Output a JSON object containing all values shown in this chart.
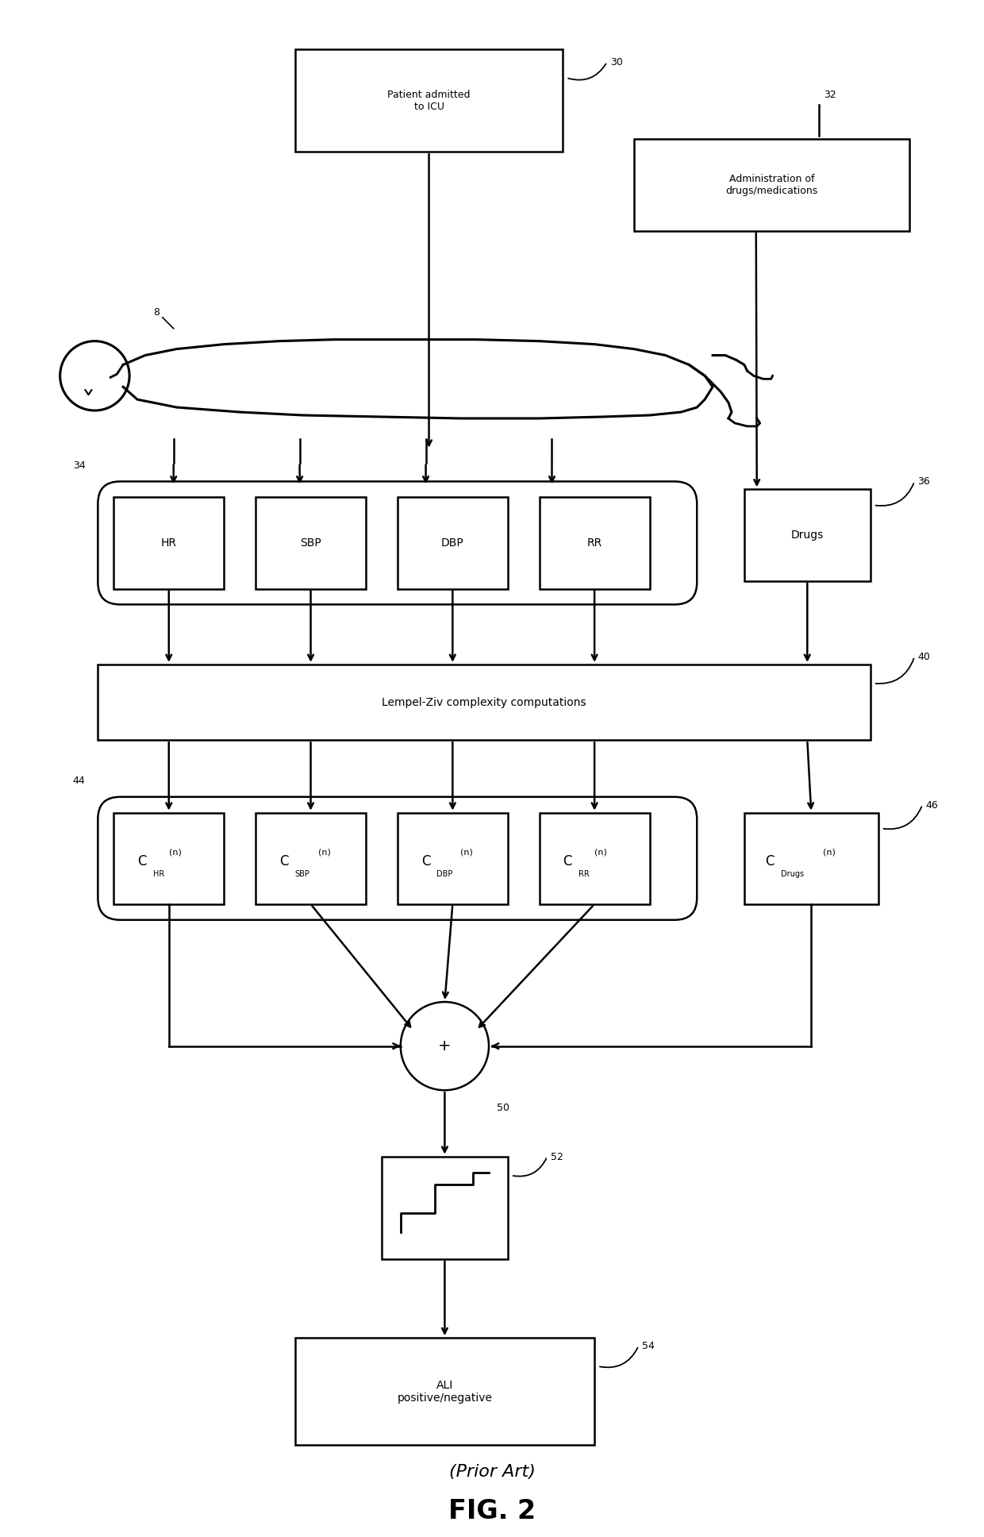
{
  "bg_color": "#ffffff",
  "line_color": "#000000",
  "text_color": "#000000",
  "fig_width": 12.4,
  "fig_height": 19.36,
  "title_prior_art": "(Prior Art)",
  "title_fig": "FIG. 2",
  "labels": {
    "patient_box": "Patient admitted\nto ICU",
    "drugs_box": "Administration of\ndrugs/medications",
    "hr": "HR",
    "sbp": "SBP",
    "dbp": "DBP",
    "rr": "RR",
    "drugs": "Drugs",
    "lempel": "Lempel-Ziv complexity computations",
    "plus": "+",
    "ali": "ALI\npositive/negative",
    "ref_30": "30",
    "ref_32": "32",
    "ref_8": "8",
    "ref_34": "34",
    "ref_36": "36",
    "ref_40": "40",
    "ref_44": "44",
    "ref_46": "46",
    "ref_50": "50",
    "ref_52": "52",
    "ref_54": "54"
  }
}
